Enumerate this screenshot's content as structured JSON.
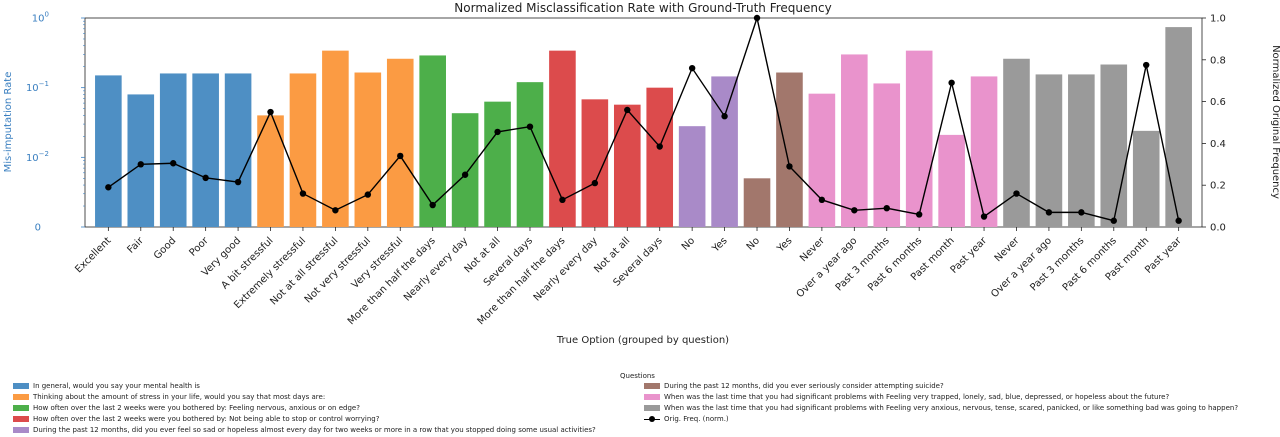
{
  "chart_data": {
    "type": "bar",
    "title": "Normalized Misclassification Rate with Ground-Truth Frequency",
    "xlabel": "True Option (grouped by question)",
    "ylabel": "Mis-imputation Rate",
    "y2label": "Normalized Original Frequency",
    "yscale": "log",
    "ylim": [
      0.001,
      1
    ],
    "y_ticks": [
      {
        "value": 1,
        "label": "10^0"
      },
      {
        "value": 0.1,
        "label": "10^-1"
      },
      {
        "value": 0.01,
        "label": "10^-2"
      },
      {
        "value": 0.001,
        "label": "0"
      }
    ],
    "y2lim": [
      0,
      1.0
    ],
    "y2_ticks": [
      "0.0",
      "0.2",
      "0.4",
      "0.6",
      "0.8",
      "1.0"
    ],
    "categories": [
      "Excellent",
      "Fair",
      "Good",
      "Poor",
      "Very good",
      "A bit stressful",
      "Extremely stressful",
      "Not at all stressful",
      "Not very stressful",
      "Very stressful",
      "More than half the days",
      "Nearly every day",
      "Not at all",
      "Several days",
      "More than half the days",
      "Nearly every day",
      "Not at all",
      "Several days",
      "No",
      "Yes",
      "No",
      "Yes",
      "Never",
      "Over a year ago",
      "Past 3 months",
      "Past 6 months",
      "Past month",
      "Past year",
      "Never",
      "Over a year ago",
      "Past 3 months",
      "Past 6 months",
      "Past month",
      "Past year"
    ],
    "bar_groups": [
      0,
      0,
      0,
      0,
      0,
      1,
      1,
      1,
      1,
      1,
      2,
      2,
      2,
      2,
      3,
      3,
      3,
      3,
      4,
      4,
      5,
      5,
      6,
      6,
      6,
      6,
      6,
      6,
      7,
      7,
      7,
      7,
      7,
      7
    ],
    "values": [
      0.15,
      0.08,
      0.16,
      0.16,
      0.16,
      0.04,
      0.16,
      0.34,
      0.165,
      0.26,
      0.29,
      0.043,
      0.063,
      0.12,
      0.34,
      0.068,
      0.057,
      0.1,
      0.028,
      0.145,
      0.005,
      0.165,
      0.082,
      0.3,
      0.115,
      0.34,
      0.021,
      0.145,
      0.26,
      0.155,
      0.155,
      0.215,
      0.024,
      0.74
    ],
    "series": [
      {
        "name": "Orig. Freq. (norm.)",
        "type": "line",
        "axis": "right",
        "values": [
          0.19,
          0.3,
          0.305,
          0.235,
          0.215,
          0.55,
          0.16,
          0.08,
          0.155,
          0.34,
          0.105,
          0.25,
          0.455,
          0.48,
          0.13,
          0.21,
          0.56,
          0.385,
          0.76,
          0.53,
          1.0,
          0.29,
          0.13,
          0.08,
          0.09,
          0.06,
          0.69,
          0.05,
          0.16,
          0.07,
          0.07,
          0.03,
          0.775,
          0.03
        ]
      }
    ],
    "legend": {
      "title": "Questions",
      "placement": "bottom",
      "groups": [
        {
          "label": "In general, would you say your mental health is",
          "color": "#4e8fc4"
        },
        {
          "label": "Thinking about the amount of stress in your life, would you say that most days are:",
          "color": "#fb9b43"
        },
        {
          "label": "How often over the last 2 weeks were you bothered by: Feeling nervous, anxious or on edge?",
          "color": "#4daf4a"
        },
        {
          "label": "How often over the last 2 weeks were you bothered by: Not being able to stop or control worrying?",
          "color": "#dc4b4c"
        },
        {
          "label": "During the past 12 months, did you ever feel so sad or hopeless almost every day for two weeks or more in a row that you stopped doing some usual activities?",
          "color": "#a98ac8"
        },
        {
          "label": "During the past 12 months, did you ever seriously consider attempting suicide?",
          "color": "#a2776c"
        },
        {
          "label": "When was the last time that you had significant problems with Feeling very trapped, lonely, sad, blue, depressed, or hopeless about the future?",
          "color": "#e993cc"
        },
        {
          "label": "When was the last time that you had significant problems with Feeling very anxious, nervous, tense, scared, panicked, or like something bad was going to happen?",
          "color": "#9a9a9a"
        }
      ],
      "line_label": "Orig. Freq. (norm.)"
    },
    "grid": false
  }
}
